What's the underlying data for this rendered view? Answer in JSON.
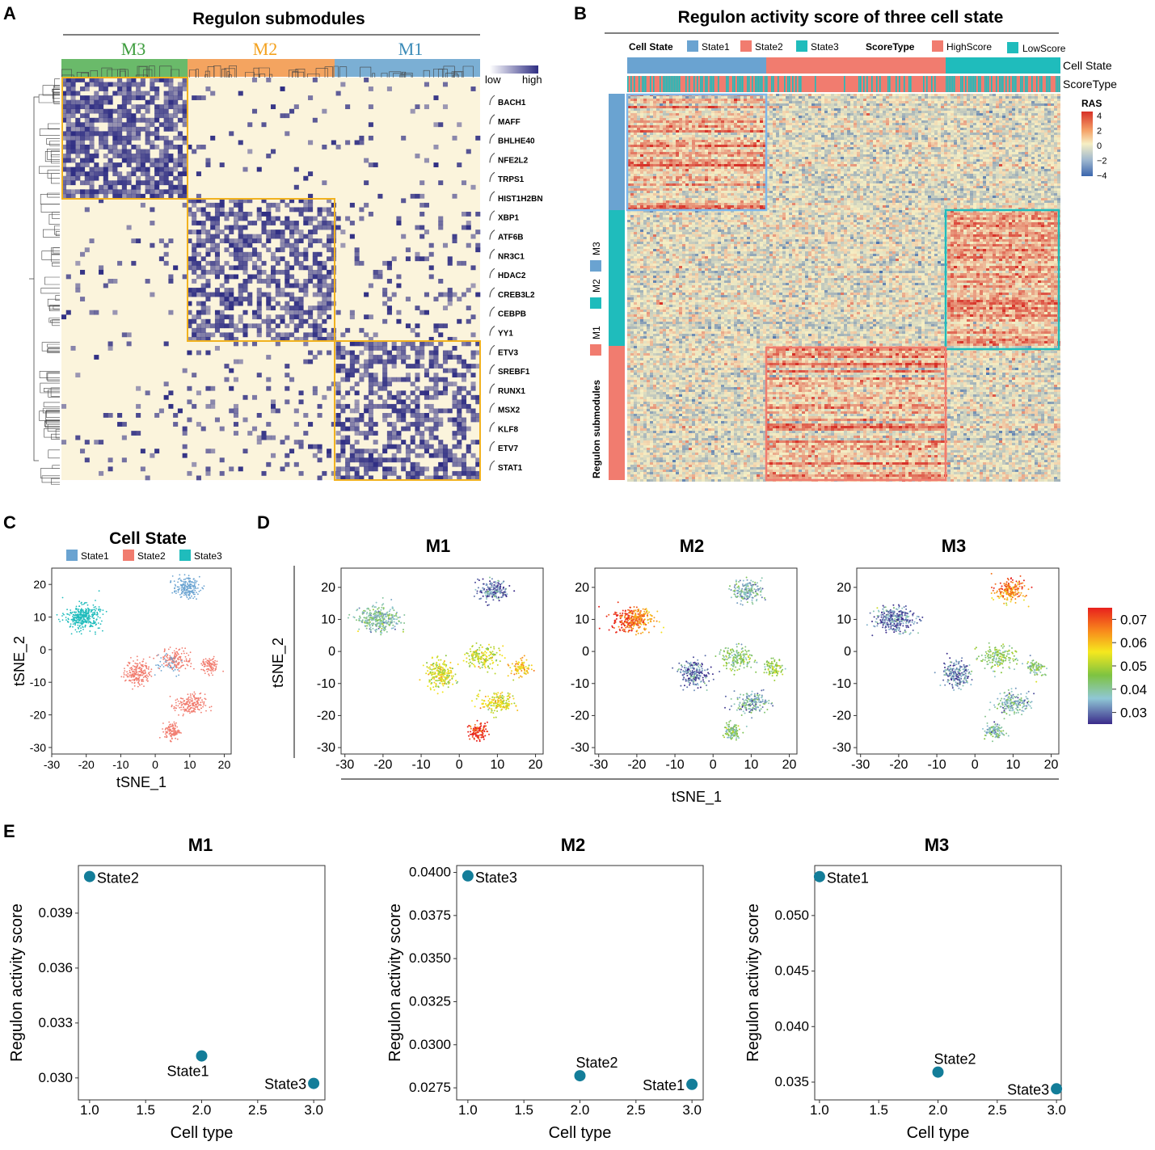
{
  "panel_letters": [
    "A",
    "B",
    "C",
    "D",
    "E"
  ],
  "colors": {
    "m3": "#6aba6a",
    "m2": "#f4a460",
    "m1": "#7bafd4",
    "state1": "#6aa3d1",
    "state2": "#f17c6f",
    "state3": "#1fbcbc",
    "heat_low": "#fbf4dc",
    "heat_high": "#2e2d83",
    "dot": "#137d99",
    "box_gold": "#f1b21f"
  },
  "chart_data": [
    {
      "id": "A",
      "type": "heatmap",
      "title": "Regulon submodules",
      "modules": [
        "M3",
        "M2",
        "M1"
      ],
      "legend": {
        "low": "low",
        "high": "high"
      },
      "regulons": [
        "BACH1",
        "MAFF",
        "BHLHE40",
        "NFE2L2",
        "TRPS1",
        "HIST1H2BN",
        "XBP1",
        "ATF6B",
        "NR3C1",
        "HDAC2",
        "CREB3L2",
        "CEBPB",
        "YY1",
        "ETV3",
        "SREBF1",
        "RUNX1",
        "MSX2",
        "KLF8",
        "ETV7",
        "STAT1"
      ]
    },
    {
      "id": "B",
      "type": "heatmap",
      "title": "Regulon activity score of three cell state",
      "cell_state_legend_title": "Cell State",
      "cell_states": [
        "State1",
        "State2",
        "State3"
      ],
      "score_type_legend_title": "ScoreType",
      "score_types": [
        "HighScore",
        "LowScore"
      ],
      "row_annotations": [
        "Cell State",
        "ScoreType"
      ],
      "row_group_title": "Regulon submodules",
      "row_groups": [
        "M3",
        "M2",
        "M1"
      ],
      "colorbar": {
        "title": "RAS",
        "ticks": [
          "4",
          "2",
          "0",
          "−2",
          "−4"
        ],
        "range": [
          -4,
          4
        ]
      }
    },
    {
      "id": "C",
      "type": "scatter",
      "title": "Cell State",
      "legend": [
        "State1",
        "State2",
        "State3"
      ],
      "xlabel": "tSNE_1",
      "ylabel": "tSNE_2",
      "xticks": [
        "-30",
        "-20",
        "-10",
        "0",
        "10",
        "20"
      ],
      "yticks": [
        "20",
        "10",
        "0",
        "-10",
        "-20",
        "-30"
      ],
      "xlim": [
        -30,
        22
      ],
      "ylim": [
        -32,
        25
      ],
      "clusters": [
        {
          "state": "State3",
          "cx": -21,
          "cy": 10,
          "sx": 4.5,
          "sy": 3.4,
          "n": 340
        },
        {
          "state": "State1",
          "cx": 9,
          "cy": 19,
          "sx": 3.4,
          "sy": 2.8,
          "n": 190
        },
        {
          "state": "State2",
          "cx": -5,
          "cy": -7,
          "sx": 3.2,
          "sy": 3.6,
          "n": 200
        },
        {
          "state": "State2",
          "cx": 6,
          "cy": -3,
          "sx": 4,
          "sy": 3,
          "n": 150
        },
        {
          "state": "State2",
          "cx": 16,
          "cy": -5,
          "sx": 2.2,
          "sy": 2.2,
          "n": 90
        },
        {
          "state": "State2",
          "cx": 10,
          "cy": -17,
          "sx": 4,
          "sy": 3,
          "n": 190
        },
        {
          "state": "State2",
          "cx": 5,
          "cy": -25,
          "sx": 2,
          "sy": 2.4,
          "n": 110
        },
        {
          "state": "State1",
          "cx": 3,
          "cy": -4,
          "sx": 5,
          "sy": 4,
          "n": 40
        }
      ]
    },
    {
      "id": "D",
      "type": "scatter",
      "titles": [
        "M1",
        "M2",
        "M3"
      ],
      "xlabel": "tSNE_1",
      "ylabel": "tSNE_2",
      "xticks": [
        "-30",
        "-20",
        "-10",
        "0",
        "10",
        "20"
      ],
      "yticks": [
        "20",
        "10",
        "0",
        "-10",
        "-20",
        "-30"
      ],
      "xlim": [
        -31,
        22
      ],
      "ylim": [
        -32,
        26
      ],
      "colorbar": {
        "ticks": [
          "0.07",
          "0.06",
          "0.05",
          "0.04",
          "0.03"
        ],
        "range": [
          0.025,
          0.075
        ]
      },
      "cluster_means": {
        "labels": [
          "top-right",
          "left",
          "center-left",
          "center",
          "right",
          "lower-right",
          "bottom"
        ],
        "M1": [
          0.03,
          0.038,
          0.052,
          0.051,
          0.058,
          0.054,
          0.071
        ],
        "M2": [
          0.036,
          0.068,
          0.03,
          0.042,
          0.046,
          0.036,
          0.041
        ],
        "M3": [
          0.066,
          0.03,
          0.032,
          0.043,
          0.042,
          0.036,
          0.038
        ]
      }
    },
    {
      "id": "E1",
      "type": "scatter",
      "title": "M1",
      "xlabel": "Cell type",
      "ylabel": "Regulon activity score",
      "xticks": [
        "1.0",
        "1.5",
        "2.0",
        "2.5",
        "3.0"
      ],
      "xlim": [
        0.9,
        3.1
      ],
      "yticks": [
        "0.039",
        "0.036",
        "0.033",
        "0.030"
      ],
      "ylim": [
        0.0288,
        0.0416
      ],
      "points": [
        {
          "x": 1,
          "y": 0.041,
          "label": "State2"
        },
        {
          "x": 2,
          "y": 0.0312,
          "label": "State1"
        },
        {
          "x": 3,
          "y": 0.0297,
          "label": "State3"
        }
      ]
    },
    {
      "id": "E2",
      "type": "scatter",
      "title": "M2",
      "xlabel": "Cell type",
      "ylabel": "Regulon activity score",
      "xticks": [
        "1.0",
        "1.5",
        "2.0",
        "2.5",
        "3.0"
      ],
      "xlim": [
        0.9,
        3.1
      ],
      "yticks": [
        "0.0400",
        "0.0375",
        "0.0350",
        "0.0325",
        "0.0300",
        "0.0275"
      ],
      "ylim": [
        0.0268,
        0.0404
      ],
      "points": [
        {
          "x": 1,
          "y": 0.0398,
          "label": "State3"
        },
        {
          "x": 2,
          "y": 0.0282,
          "label": "State2"
        },
        {
          "x": 3,
          "y": 0.0277,
          "label": "State1"
        }
      ]
    },
    {
      "id": "E3",
      "type": "scatter",
      "title": "M3",
      "xlabel": "Cell type",
      "ylabel": "Regulon activity score",
      "xticks": [
        "1.0",
        "1.5",
        "2.0",
        "2.5",
        "3.0"
      ],
      "xlim": [
        0.96,
        3.04
      ],
      "yticks": [
        "0.050",
        "0.045",
        "0.040",
        "0.035"
      ],
      "ylim": [
        0.0334,
        0.0545
      ],
      "points": [
        {
          "x": 1,
          "y": 0.0535,
          "label": "State1"
        },
        {
          "x": 2,
          "y": 0.0359,
          "label": "State2"
        },
        {
          "x": 3,
          "y": 0.0344,
          "label": "State3"
        }
      ]
    }
  ]
}
